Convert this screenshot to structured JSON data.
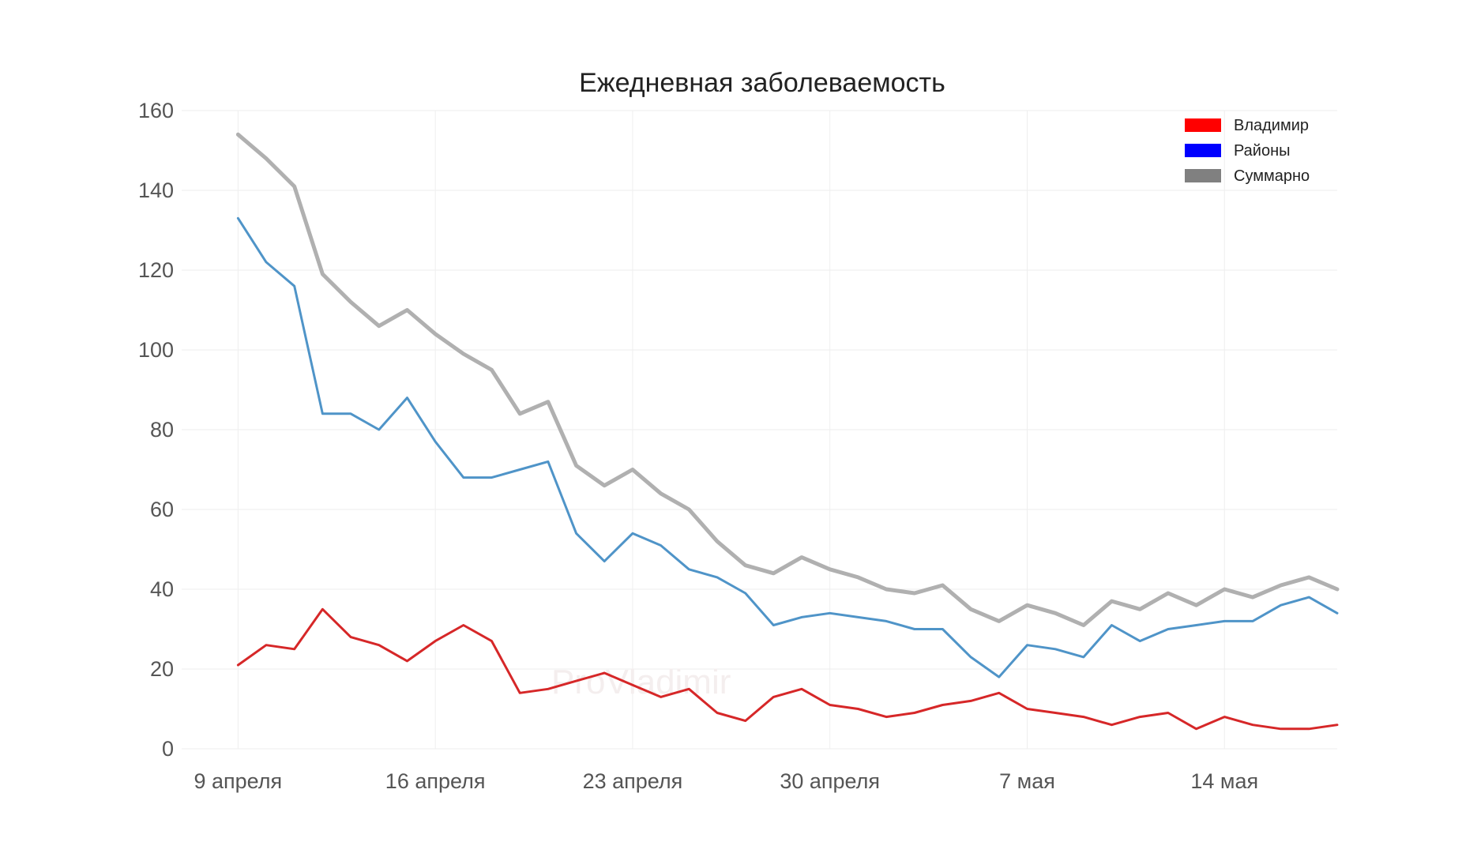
{
  "chart_data": {
    "type": "line",
    "title": "Ежедневная заболеваемость",
    "xlabel": "",
    "ylabel": "",
    "x_start": "2020-04-09",
    "x_tick_labels": [
      "9 апреля",
      "16 апреля",
      "23 апреля",
      "30 апреля",
      "7 мая",
      "14 мая"
    ],
    "x_tick_days": [
      0,
      7,
      14,
      21,
      28,
      35
    ],
    "y_ticks": [
      0,
      20,
      40,
      60,
      80,
      100,
      120,
      140,
      160
    ],
    "ylim": [
      0,
      160
    ],
    "xlim": [
      -2,
      39
    ],
    "grid": true,
    "legend_position": "top-right",
    "legend": [
      {
        "label": "Владимир",
        "color": "#ff0000"
      },
      {
        "label": "Районы",
        "color": "#0000ff"
      },
      {
        "label": "Суммарно",
        "color": "#808080"
      }
    ],
    "series": [
      {
        "name": "Владимир",
        "color": "#d62728",
        "width": 3,
        "values": [
          21,
          26,
          25,
          35,
          28,
          26,
          22,
          27,
          31,
          27,
          14,
          15,
          17,
          19,
          16,
          13,
          15,
          9,
          7,
          13,
          15,
          11,
          10,
          8,
          9,
          11,
          12,
          14,
          10,
          9,
          8,
          6,
          8,
          9,
          5,
          8,
          6,
          5,
          5,
          6
        ]
      },
      {
        "name": "Районы",
        "color": "#4f94c8",
        "width": 3,
        "values": [
          133,
          122,
          116,
          84,
          84,
          80,
          88,
          77,
          68,
          68,
          70,
          72,
          54,
          47,
          54,
          51,
          45,
          43,
          39,
          31,
          33,
          34,
          33,
          32,
          30,
          30,
          23,
          18,
          26,
          25,
          23,
          31,
          27,
          30,
          31,
          32,
          32,
          36,
          38,
          34
        ]
      },
      {
        "name": "Суммарно",
        "color": "#b0b0b0",
        "width": 5,
        "values": [
          154,
          148,
          141,
          119,
          112,
          106,
          110,
          104,
          99,
          95,
          84,
          87,
          71,
          66,
          70,
          64,
          60,
          52,
          46,
          44,
          48,
          45,
          43,
          40,
          39,
          41,
          35,
          32,
          36,
          34,
          31,
          37,
          35,
          39,
          36,
          40,
          38,
          41,
          43,
          40
        ]
      }
    ]
  },
  "watermark": "ProVladimir"
}
